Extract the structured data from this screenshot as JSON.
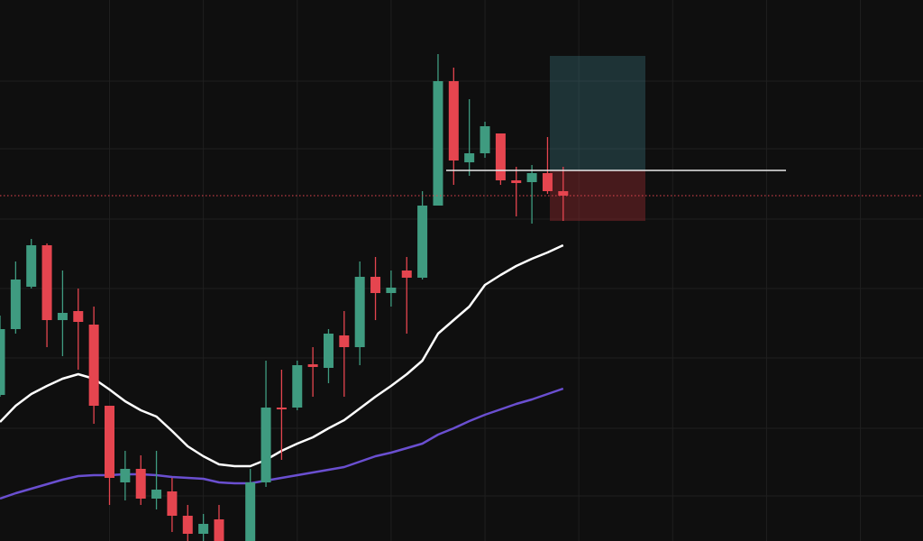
{
  "chart_data": {
    "type": "candlestick",
    "x": [
      0,
      1,
      2,
      3,
      4,
      5,
      6,
      7,
      8,
      9,
      10,
      11,
      12,
      13,
      14,
      15,
      16,
      17,
      18,
      19,
      20,
      21,
      22,
      23,
      24,
      25,
      26,
      27,
      28,
      29,
      30,
      31,
      32,
      33,
      34,
      35,
      36
    ],
    "open": [
      162,
      235,
      282,
      328,
      245,
      255,
      240,
      150,
      65,
      80,
      47,
      55,
      28,
      8,
      24,
      null,
      0,
      65,
      148,
      148,
      196,
      192,
      228,
      215,
      293,
      275,
      300,
      292,
      372,
      510,
      420,
      430,
      452,
      400,
      398,
      408,
      388
    ],
    "high": [
      250,
      310,
      335,
      330,
      300,
      280,
      260,
      150,
      100,
      95,
      100,
      70,
      40,
      30,
      40,
      null,
      80,
      200,
      190,
      200,
      215,
      235,
      255,
      310,
      315,
      300,
      315,
      388,
      540,
      525,
      490,
      465,
      452,
      415,
      417,
      448,
      415
    ],
    "low": [
      160,
      230,
      280,
      215,
      205,
      190,
      130,
      40,
      45,
      40,
      35,
      10,
      0,
      0,
      0,
      null,
      0,
      60,
      90,
      145,
      160,
      175,
      160,
      195,
      245,
      260,
      230,
      290,
      372,
      395,
      405,
      425,
      395,
      360,
      352,
      385,
      355
    ],
    "close": [
      235,
      290,
      328,
      245,
      253,
      243,
      150,
      70,
      80,
      47,
      57,
      28,
      8,
      19,
      0,
      null,
      65,
      148,
      146,
      195,
      193,
      230,
      215,
      293,
      275,
      281,
      292,
      372,
      510,
      422,
      430,
      460,
      400,
      397,
      408,
      388,
      383
    ],
    "up_color": "#3f9b80",
    "down_color": "#e5454f",
    "lines": [
      {
        "color": "#ffffff",
        "values": [
          132,
          150,
          163,
          172,
          180,
          185,
          180,
          168,
          155,
          145,
          138,
          122,
          105,
          94,
          85,
          83,
          83,
          90,
          100,
          108,
          115,
          125,
          134,
          147,
          160,
          172,
          185,
          200,
          230,
          245,
          260,
          284,
          295,
          305,
          313,
          320,
          328
        ]
      },
      {
        "color": "#6a4fd0",
        "values": [
          47,
          53,
          58,
          63,
          68,
          72,
          73,
          73,
          74,
          74,
          73,
          71,
          70,
          69,
          65,
          64,
          64,
          67,
          70,
          73,
          76,
          79,
          82,
          88,
          94,
          98,
          103,
          108,
          118,
          125,
          133,
          140,
          146,
          152,
          157,
          163,
          169
        ]
      }
    ],
    "price_line": {
      "value": 383,
      "color": "#e5454f"
    },
    "position": {
      "entry": 411,
      "target": 538,
      "stop": 355
    },
    "xlim": [
      0,
      59
    ],
    "ylim": [
      0,
      600
    ],
    "xticks": [
      7,
      13,
      19,
      25,
      31,
      37,
      43,
      49,
      55
    ],
    "yticks": [
      50,
      125,
      203,
      280,
      357,
      435,
      510
    ],
    "grid": true
  }
}
